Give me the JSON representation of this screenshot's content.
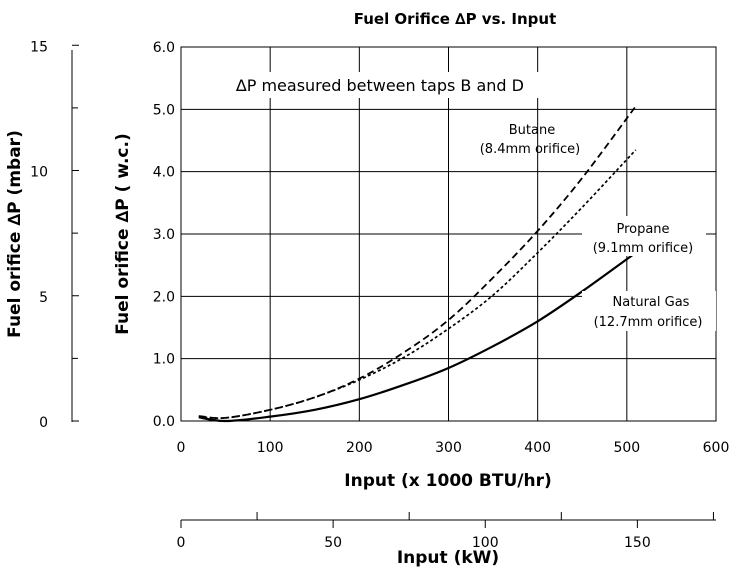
{
  "chart_data": {
    "type": "line",
    "title": "Fuel Orifice ∆P vs. Input",
    "annotation": "∆P measured between taps B and D",
    "xlabel": "Input (x 1000 BTU/hr)",
    "ylabel": "Fuel orifice ∆P ( w.c.)",
    "xlim": [
      0,
      600
    ],
    "ylim": [
      0,
      6
    ],
    "x_ticks": [
      "0",
      "100",
      "200",
      "300",
      "400",
      "500",
      "600"
    ],
    "y_ticks": [
      "0.0",
      "1.0",
      "2.0",
      "3.0",
      "4.0",
      "5.0",
      "6.0"
    ],
    "grid": true,
    "secondary_y": {
      "label": "Fuel orifice ∆P (mbar)",
      "ticks": [
        "0",
        "5",
        "10",
        "15"
      ]
    },
    "secondary_x": {
      "label": "Input (kW)",
      "ticks": [
        "0",
        "50",
        "100",
        "150"
      ]
    },
    "series": [
      {
        "name": "Butane",
        "label_line1": "Butane",
        "label_line2": "(8.4mm orifice)",
        "style": "dashed",
        "x": [
          20,
          50,
          100,
          150,
          200,
          250,
          300,
          350,
          400,
          450,
          510
        ],
        "y": [
          0.08,
          0.05,
          0.18,
          0.38,
          0.68,
          1.1,
          1.62,
          2.3,
          3.05,
          3.9,
          5.05
        ]
      },
      {
        "name": "Propane",
        "label_line1": "Propane",
        "label_line2": "(9.1mm orifice)",
        "style": "dotted",
        "x": [
          20,
          50,
          100,
          150,
          200,
          250,
          300,
          350,
          400,
          450,
          510
        ],
        "y": [
          0.07,
          0.05,
          0.18,
          0.38,
          0.66,
          1.02,
          1.48,
          2.02,
          2.7,
          3.43,
          4.35
        ]
      },
      {
        "name": "Natural Gas",
        "label_line1": "Natural Gas",
        "label_line2": "(12.7mm orifice)",
        "style": "solid",
        "x": [
          20,
          50,
          100,
          150,
          200,
          250,
          300,
          350,
          400,
          450,
          510
        ],
        "y": [
          0.06,
          0.0,
          0.07,
          0.18,
          0.35,
          0.58,
          0.85,
          1.2,
          1.6,
          2.08,
          2.7
        ]
      }
    ]
  }
}
